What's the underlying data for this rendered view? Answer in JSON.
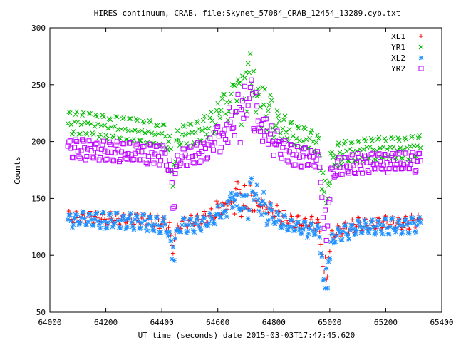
{
  "chart_data": {
    "type": "scatter",
    "title": "HIRES continuum, CRAB, file:Skynet_57084_CRAB_12454_13289.cyb.txt",
    "xlabel": "UT time (seconds) date 2015-03-03T17:47:45.620",
    "ylabel": "Counts",
    "xlim": [
      64000,
      65400
    ],
    "ylim": [
      50,
      300
    ],
    "xticks": [
      64000,
      64200,
      64400,
      64600,
      64800,
      65000,
      65200,
      65400
    ],
    "yticks": [
      50,
      100,
      150,
      200,
      250,
      300
    ],
    "grid": false,
    "legend_position": "top-right",
    "sample_step_seconds": 4,
    "x_start": 64064,
    "x_end": 65324,
    "series": [
      {
        "name": "XL1",
        "marker": "plus",
        "color": "#ff0000",
        "baseline": [
          [
            64064,
            133
          ],
          [
            64300,
            132
          ],
          [
            64450,
            128
          ],
          [
            64600,
            131
          ],
          [
            64800,
            130
          ],
          [
            64950,
            128
          ],
          [
            65000,
            118
          ],
          [
            65100,
            127
          ],
          [
            65324,
            130
          ]
        ],
        "oscillation_amplitude": 5,
        "transit_peak": {
          "center": 64700,
          "width": 95,
          "height": 35
        },
        "dips": [
          {
            "center": 64440,
            "width": 14,
            "depth": 25
          },
          {
            "center": 64985,
            "width": 15,
            "depth": 55
          }
        ]
      },
      {
        "name": "YR1",
        "marker": "cross",
        "color": "#00bb00",
        "baseline": [
          [
            64064,
            217
          ],
          [
            64300,
            210
          ],
          [
            64450,
            205
          ],
          [
            64600,
            208
          ],
          [
            64800,
            207
          ],
          [
            64950,
            200
          ],
          [
            65000,
            188
          ],
          [
            65100,
            193
          ],
          [
            65324,
            195
          ]
        ],
        "oscillation_amplitude": 10,
        "transit_peak": {
          "center": 64700,
          "width": 95,
          "height": 70
        },
        "dips": [
          {
            "center": 64440,
            "width": 14,
            "depth": 40
          },
          {
            "center": 64985,
            "width": 15,
            "depth": 70
          }
        ]
      },
      {
        "name": "XL2",
        "marker": "star",
        "color": "#1e90ff",
        "baseline": [
          [
            64064,
            132
          ],
          [
            64300,
            130
          ],
          [
            64450,
            125
          ],
          [
            64600,
            128
          ],
          [
            64800,
            127
          ],
          [
            64950,
            122
          ],
          [
            65000,
            115
          ],
          [
            65100,
            124
          ],
          [
            65324,
            127
          ]
        ],
        "oscillation_amplitude": 6,
        "transit_peak": {
          "center": 64700,
          "width": 95,
          "height": 36
        },
        "dips": [
          {
            "center": 64440,
            "width": 14,
            "depth": 30
          },
          {
            "center": 64985,
            "width": 15,
            "depth": 62
          }
        ]
      },
      {
        "name": "YR2",
        "marker": "square",
        "color": "#bb00ff",
        "baseline": [
          [
            64064,
            194
          ],
          [
            64300,
            190
          ],
          [
            64450,
            187
          ],
          [
            64600,
            190
          ],
          [
            64800,
            188
          ],
          [
            64950,
            185
          ],
          [
            65000,
            175
          ],
          [
            65100,
            181
          ],
          [
            65324,
            182
          ]
        ],
        "oscillation_amplitude": 8,
        "transit_peak": {
          "center": 64700,
          "width": 95,
          "height": 62
        },
        "dips": [
          {
            "center": 64440,
            "width": 14,
            "depth": 45
          },
          {
            "center": 64985,
            "width": 15,
            "depth": 75
          }
        ]
      }
    ]
  }
}
